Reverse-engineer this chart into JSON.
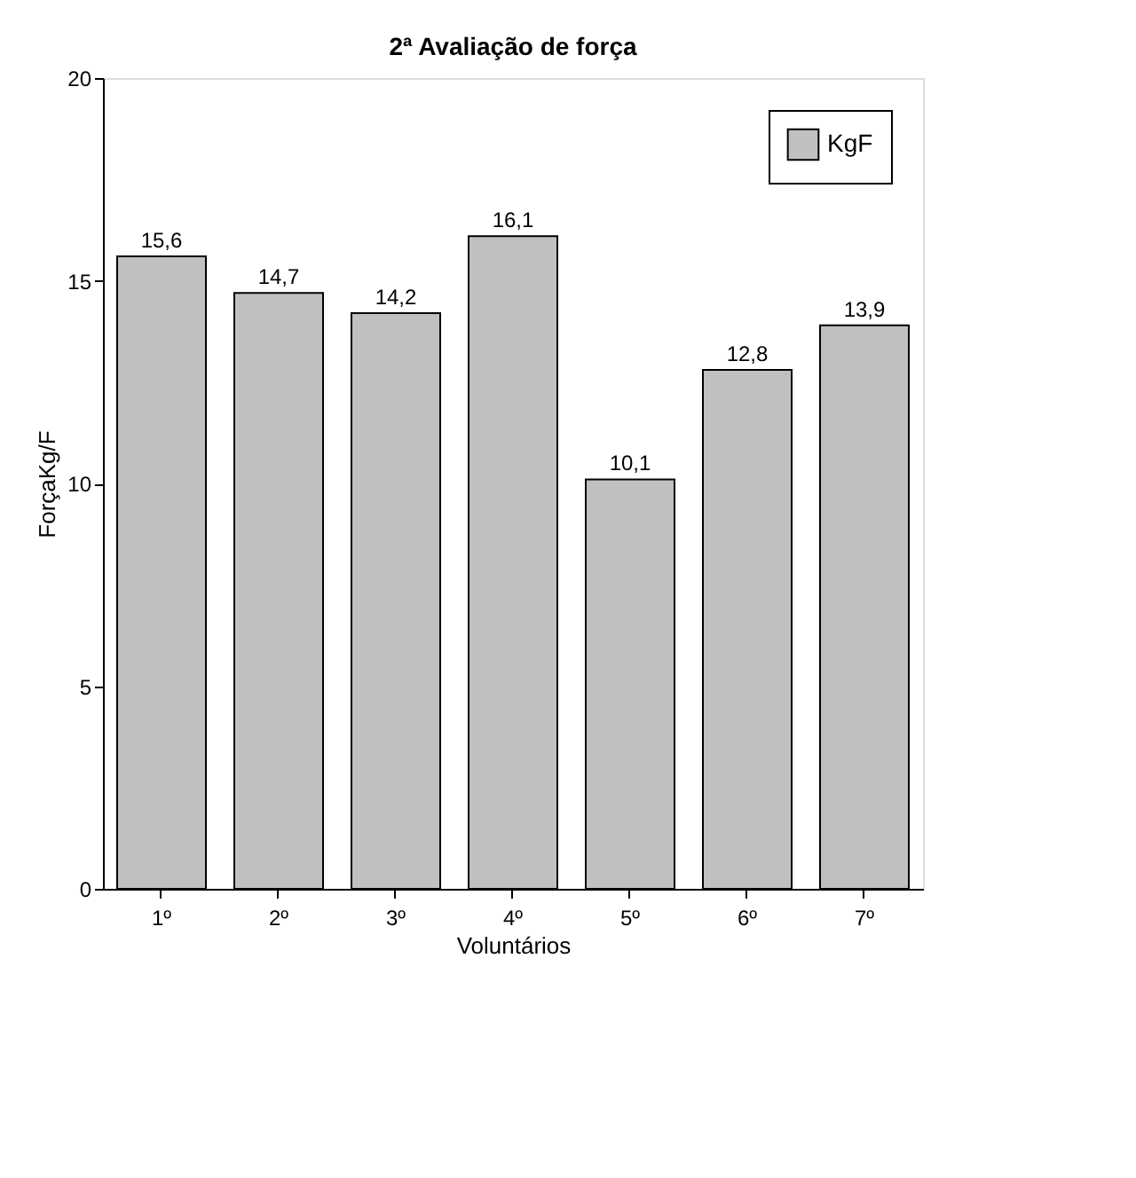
{
  "chart_data": {
    "type": "bar",
    "title": "2ª Avaliação de força",
    "xlabel": "Voluntários",
    "ylabel": "ForçaKg/F",
    "categories": [
      "1º",
      "2º",
      "3º",
      "4º",
      "5º",
      "6º",
      "7º"
    ],
    "series": [
      {
        "name": "KgF",
        "color": "#c0c0c2",
        "values": [
          15.6,
          14.7,
          14.2,
          16.1,
          10.1,
          12.8,
          13.9
        ],
        "value_labels": [
          "15,6",
          "14,7",
          "14,2",
          "16,1",
          "10,1",
          "12,8",
          "13,9"
        ]
      }
    ],
    "ylim": [
      0,
      20
    ],
    "yticks": [
      0,
      5,
      10,
      15,
      20
    ],
    "grid": false,
    "legend": "top right"
  }
}
